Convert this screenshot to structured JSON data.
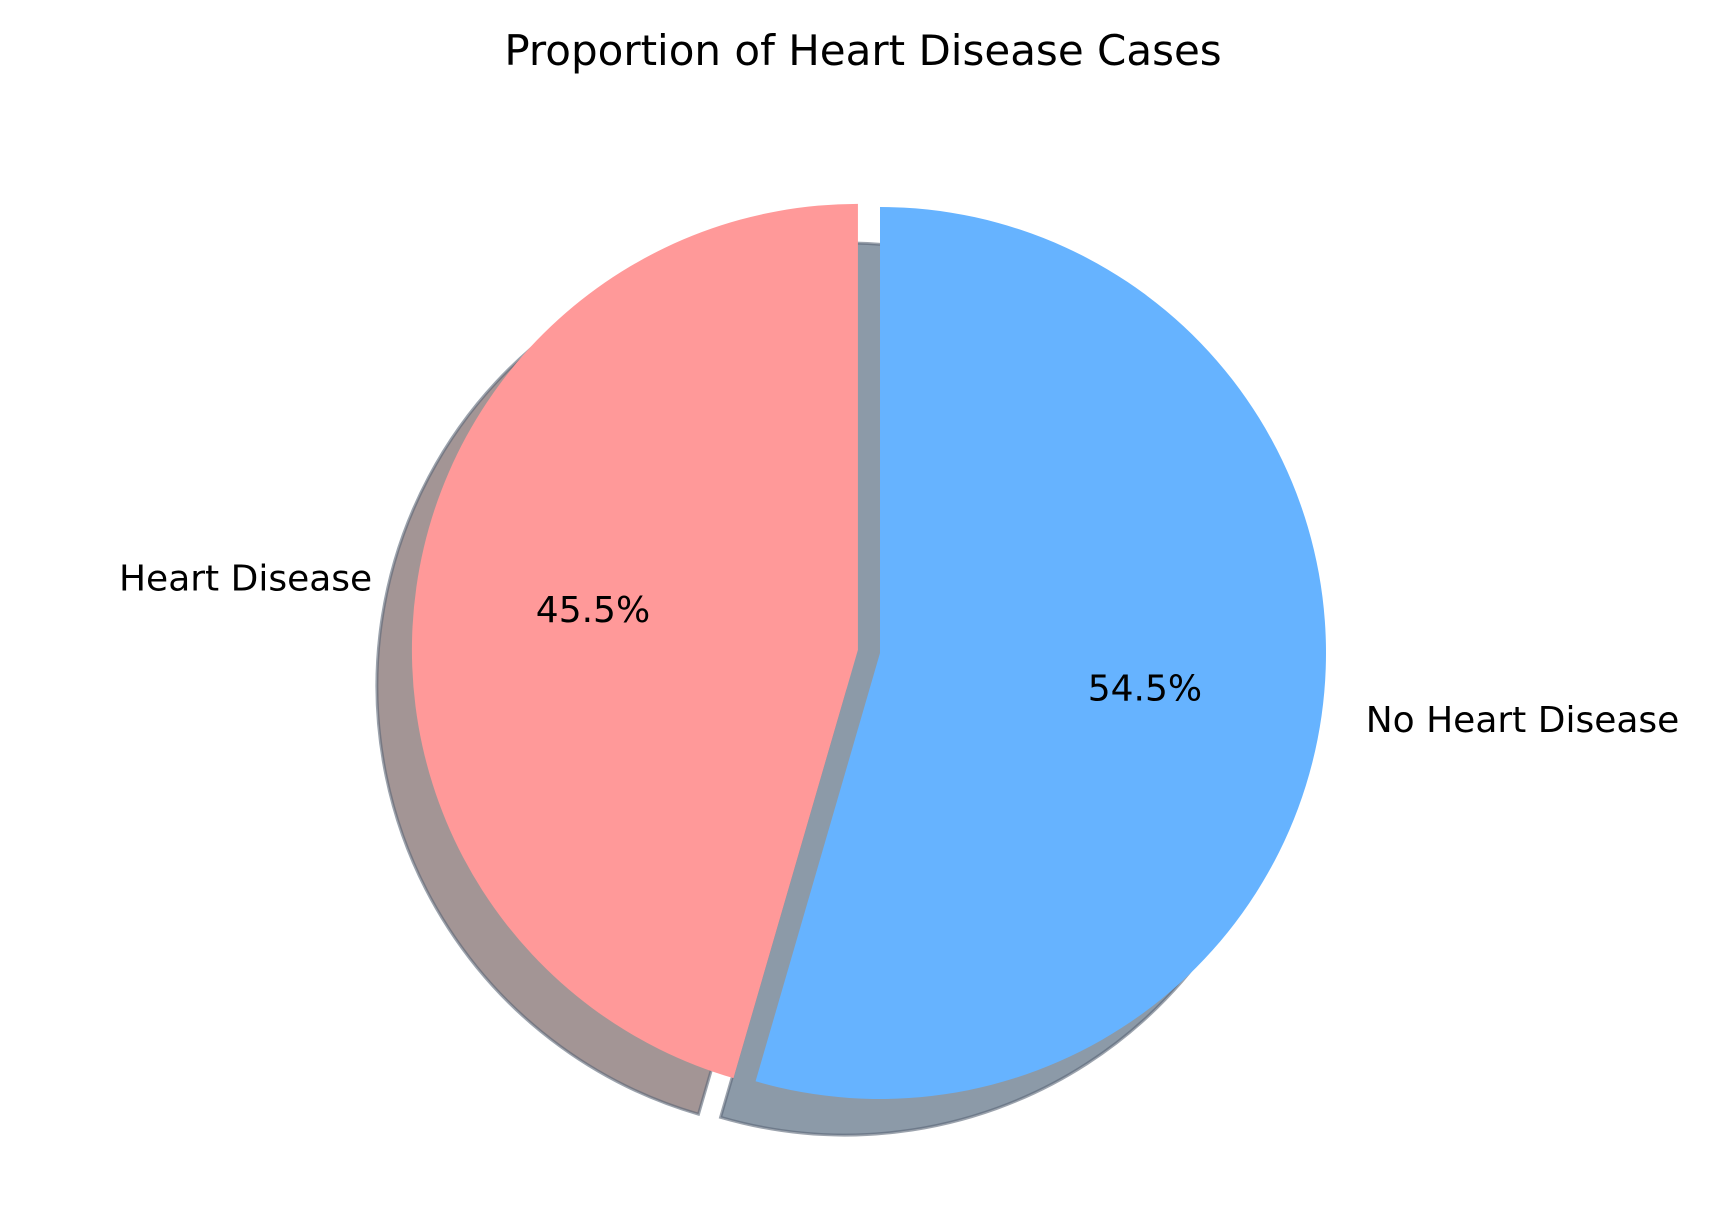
{
  "chart_data": {
    "type": "pie",
    "title": "Proportion of Heart Disease Cases",
    "categories": [
      "No Heart Disease",
      "Heart Disease"
    ],
    "values": [
      54.5,
      45.5
    ],
    "percent_labels": [
      "54.5%",
      "45.5%"
    ],
    "colors": [
      "#66b3ff",
      "#ff9999"
    ],
    "shadow_colors": [
      "#8c9aa8",
      "#a39595"
    ],
    "explode": [
      0,
      0.05
    ],
    "start_angle_deg": 90,
    "direction": "clockwise",
    "shadow": true,
    "legend": "none"
  }
}
